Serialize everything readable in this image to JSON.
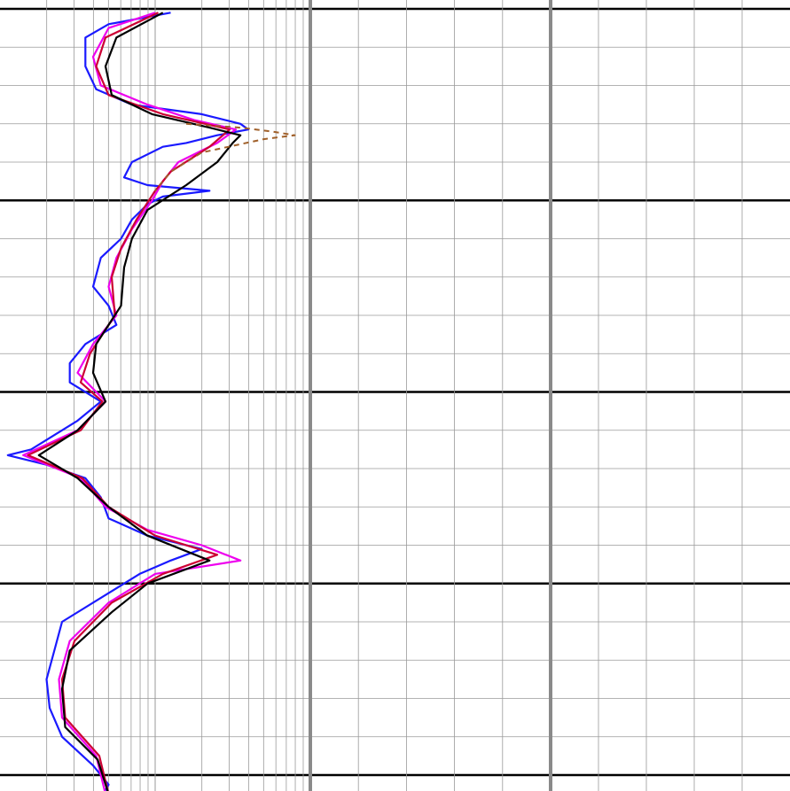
{
  "chart_data": {
    "type": "line",
    "title": "",
    "xlabel": "",
    "ylabel": "",
    "grid": true,
    "legend": "none",
    "tracks": [
      {
        "name": "",
        "scale": "log",
        "decades": 2
      },
      {
        "name": "",
        "scale": "linear"
      },
      {
        "name": "",
        "scale": "linear"
      }
    ],
    "depth_range": [
      0,
      4.15
    ],
    "series": [
      {
        "color": "#1a1aff",
        "style": "solid",
        "values": [
          [
            0.02,
            2.1
          ],
          [
            0.08,
            1.7
          ],
          [
            0.15,
            1.55
          ],
          [
            0.3,
            1.55
          ],
          [
            0.42,
            1.62
          ],
          [
            0.5,
            1.85
          ],
          [
            0.55,
            2.3
          ],
          [
            0.6,
            2.55
          ],
          [
            0.63,
            2.6
          ],
          [
            0.66,
            2.4
          ],
          [
            0.7,
            2.2
          ],
          [
            0.72,
            2.05
          ],
          [
            0.8,
            1.85
          ],
          [
            0.88,
            1.8
          ],
          [
            0.92,
            1.95
          ],
          [
            0.95,
            2.35
          ],
          [
            0.98,
            2.05
          ],
          [
            1.02,
            1.95
          ],
          [
            1.1,
            1.85
          ],
          [
            1.2,
            1.78
          ],
          [
            1.3,
            1.65
          ],
          [
            1.45,
            1.6
          ],
          [
            1.55,
            1.7
          ],
          [
            1.65,
            1.75
          ],
          [
            1.75,
            1.55
          ],
          [
            1.85,
            1.45
          ],
          [
            1.95,
            1.45
          ],
          [
            2.05,
            1.65
          ],
          [
            2.15,
            1.5
          ],
          [
            2.3,
            1.2
          ],
          [
            2.33,
            1.05
          ],
          [
            2.38,
            1.3
          ],
          [
            2.45,
            1.55
          ],
          [
            2.55,
            1.65
          ],
          [
            2.66,
            1.7
          ],
          [
            2.75,
            1.95
          ],
          [
            2.82,
            2.3
          ],
          [
            2.88,
            2.1
          ],
          [
            2.95,
            1.9
          ],
          [
            3.05,
            1.7
          ],
          [
            3.2,
            1.4
          ],
          [
            3.35,
            1.35
          ],
          [
            3.5,
            1.3
          ],
          [
            3.65,
            1.32
          ],
          [
            3.8,
            1.4
          ],
          [
            3.95,
            1.6
          ],
          [
            4.05,
            1.7
          ],
          [
            4.12,
            1.65
          ]
        ]
      },
      {
        "color": "#ee00ee",
        "style": "solid",
        "values": [
          [
            0.02,
            2.0
          ],
          [
            0.1,
            1.7
          ],
          [
            0.25,
            1.6
          ],
          [
            0.4,
            1.65
          ],
          [
            0.5,
            1.95
          ],
          [
            0.58,
            2.25
          ],
          [
            0.63,
            2.52
          ],
          [
            0.7,
            2.4
          ],
          [
            0.8,
            2.15
          ],
          [
            0.9,
            2.05
          ],
          [
            1.0,
            1.98
          ],
          [
            1.15,
            1.85
          ],
          [
            1.3,
            1.75
          ],
          [
            1.45,
            1.7
          ],
          [
            1.6,
            1.75
          ],
          [
            1.75,
            1.6
          ],
          [
            1.9,
            1.5
          ],
          [
            2.05,
            1.68
          ],
          [
            2.2,
            1.5
          ],
          [
            2.33,
            1.15
          ],
          [
            2.45,
            1.52
          ],
          [
            2.6,
            1.68
          ],
          [
            2.72,
            1.95
          ],
          [
            2.8,
            2.3
          ],
          [
            2.88,
            2.55
          ],
          [
            2.95,
            2.0
          ],
          [
            3.1,
            1.7
          ],
          [
            3.3,
            1.45
          ],
          [
            3.5,
            1.38
          ],
          [
            3.7,
            1.4
          ],
          [
            3.9,
            1.62
          ],
          [
            4.1,
            1.68
          ]
        ]
      },
      {
        "color": "#cc0033",
        "style": "solid",
        "values": [
          [
            0.02,
            2.02
          ],
          [
            0.15,
            1.68
          ],
          [
            0.3,
            1.62
          ],
          [
            0.45,
            1.7
          ],
          [
            0.55,
            2.05
          ],
          [
            0.63,
            2.48
          ],
          [
            0.72,
            2.35
          ],
          [
            0.85,
            2.1
          ],
          [
            0.95,
            2.0
          ],
          [
            1.1,
            1.88
          ],
          [
            1.25,
            1.78
          ],
          [
            1.4,
            1.72
          ],
          [
            1.6,
            1.74
          ],
          [
            1.8,
            1.58
          ],
          [
            1.95,
            1.52
          ],
          [
            2.05,
            1.66
          ],
          [
            2.2,
            1.52
          ],
          [
            2.33,
            1.18
          ],
          [
            2.45,
            1.53
          ],
          [
            2.6,
            1.7
          ],
          [
            2.75,
            2.0
          ],
          [
            2.85,
            2.4
          ],
          [
            2.95,
            2.05
          ],
          [
            3.1,
            1.72
          ],
          [
            3.3,
            1.48
          ],
          [
            3.5,
            1.4
          ],
          [
            3.7,
            1.42
          ],
          [
            3.9,
            1.64
          ],
          [
            4.1,
            1.7
          ]
        ]
      },
      {
        "color": "#000000",
        "style": "solid",
        "values": [
          [
            0.02,
            2.05
          ],
          [
            0.15,
            1.75
          ],
          [
            0.3,
            1.68
          ],
          [
            0.45,
            1.72
          ],
          [
            0.55,
            1.98
          ],
          [
            0.62,
            2.35
          ],
          [
            0.66,
            2.55
          ],
          [
            0.7,
            2.5
          ],
          [
            0.8,
            2.4
          ],
          [
            0.92,
            2.2
          ],
          [
            1.05,
            1.95
          ],
          [
            1.2,
            1.85
          ],
          [
            1.35,
            1.8
          ],
          [
            1.55,
            1.78
          ],
          [
            1.75,
            1.62
          ],
          [
            1.9,
            1.6
          ],
          [
            2.05,
            1.68
          ],
          [
            2.2,
            1.5
          ],
          [
            2.33,
            1.25
          ],
          [
            2.45,
            1.5
          ],
          [
            2.6,
            1.7
          ],
          [
            2.75,
            1.95
          ],
          [
            2.88,
            2.35
          ],
          [
            3.0,
            1.95
          ],
          [
            3.15,
            1.72
          ],
          [
            3.35,
            1.45
          ],
          [
            3.55,
            1.4
          ],
          [
            3.75,
            1.42
          ],
          [
            3.92,
            1.63
          ],
          [
            4.1,
            1.7
          ]
        ]
      },
      {
        "color": "#a0602a",
        "style": "dashed",
        "values": [
          [
            0.6,
            2.2
          ],
          [
            0.62,
            2.55
          ],
          [
            0.64,
            2.75
          ],
          [
            0.66,
            2.9
          ],
          [
            0.68,
            2.7
          ],
          [
            0.75,
            2.3
          ],
          [
            0.85,
            2.1
          ],
          [
            0.95,
            2.0
          ]
        ]
      }
    ]
  }
}
